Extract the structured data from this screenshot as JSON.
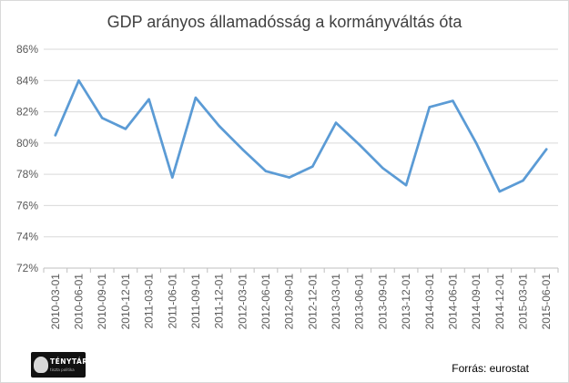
{
  "chart_data": {
    "type": "line",
    "title": "GDP arányos államadósság  a kormányváltás óta",
    "xlabel": "",
    "ylabel": "",
    "ylim": [
      72,
      86
    ],
    "ytick_step": 2,
    "ytick_labels": [
      "72%",
      "74%",
      "76%",
      "78%",
      "80%",
      "82%",
      "84%",
      "86%"
    ],
    "grid": true,
    "legend": "none",
    "categories": [
      "2010-03-01",
      "2010-06-01",
      "2010-09-01",
      "2010-12-01",
      "2011-03-01",
      "2011-06-01",
      "2011-09-01",
      "2011-12-01",
      "2012-03-01",
      "2012-06-01",
      "2012-09-01",
      "2012-12-01",
      "2013-03-01",
      "2013-06-01",
      "2013-09-01",
      "2013-12-01",
      "2014-03-01",
      "2014-06-01",
      "2014-09-01",
      "2014-12-01",
      "2015-03-01",
      "2015-06-01"
    ],
    "series": [
      {
        "color": "#5b9bd5",
        "values": [
          80.5,
          84.0,
          81.6,
          80.9,
          82.8,
          77.8,
          82.9,
          81.1,
          79.6,
          78.2,
          77.8,
          78.5,
          81.3,
          79.9,
          78.4,
          77.3,
          82.3,
          82.7,
          80.0,
          76.9,
          77.6,
          79.6
        ]
      }
    ]
  },
  "logo": {
    "name": "TÉNYTÁR",
    "tagline": "tiszta politika"
  },
  "source_label": "Forrás: eurostat"
}
